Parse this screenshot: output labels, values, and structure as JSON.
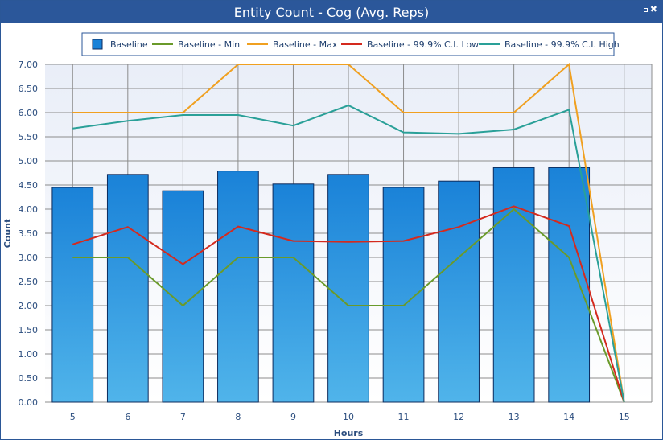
{
  "window": {
    "title": "Entity Count - Cog (Avg. Reps)",
    "restore_icon": "restore-icon",
    "close_icon": "close-icon",
    "close_glyph": "✖"
  },
  "colors": {
    "titlebar": "#2b579a",
    "bar_top": "#1a82d8",
    "bar_bottom": "#50b4ea",
    "bar_stroke": "#0d2b5c",
    "grid": "#8c8c8c",
    "plot_bg_top": "#e9eef8",
    "plot_bg_bottom": "#ffffff"
  },
  "chart_data": {
    "type": "bar",
    "xlabel": "Hours",
    "ylabel": "Count",
    "ylim": [
      0,
      7
    ],
    "ytick_step": 0.5,
    "categories": [
      "5",
      "6",
      "7",
      "8",
      "9",
      "10",
      "11",
      "12",
      "13",
      "14",
      "15"
    ],
    "grid": true,
    "legend_position": "top",
    "series": [
      {
        "name": "Baseline",
        "kind": "bar",
        "color": "#1a82d8",
        "values": [
          4.45,
          4.72,
          4.38,
          4.79,
          4.52,
          4.72,
          4.45,
          4.58,
          4.86,
          4.86,
          0
        ]
      },
      {
        "name": "Baseline - Min",
        "kind": "line",
        "color": "#6a9a2a",
        "values": [
          3.0,
          3.0,
          2.0,
          3.0,
          3.0,
          2.0,
          2.0,
          3.0,
          4.0,
          3.0,
          0
        ]
      },
      {
        "name": "Baseline - Max",
        "kind": "line",
        "color": "#f0a020",
        "values": [
          6.0,
          6.0,
          6.0,
          7.0,
          7.0,
          7.0,
          6.0,
          6.0,
          6.0,
          7.0,
          0
        ]
      },
      {
        "name": "Baseline - 99.9% C.I. Low",
        "kind": "line",
        "color": "#d42a1e",
        "values": [
          3.27,
          3.63,
          2.86,
          3.64,
          3.34,
          3.32,
          3.34,
          3.63,
          4.06,
          3.65,
          0
        ]
      },
      {
        "name": "Baseline - 99.9% C.I. High",
        "kind": "line",
        "color": "#2aa098",
        "values": [
          5.67,
          5.83,
          5.95,
          5.95,
          5.73,
          6.15,
          5.59,
          5.56,
          5.65,
          6.06,
          0
        ]
      }
    ]
  }
}
